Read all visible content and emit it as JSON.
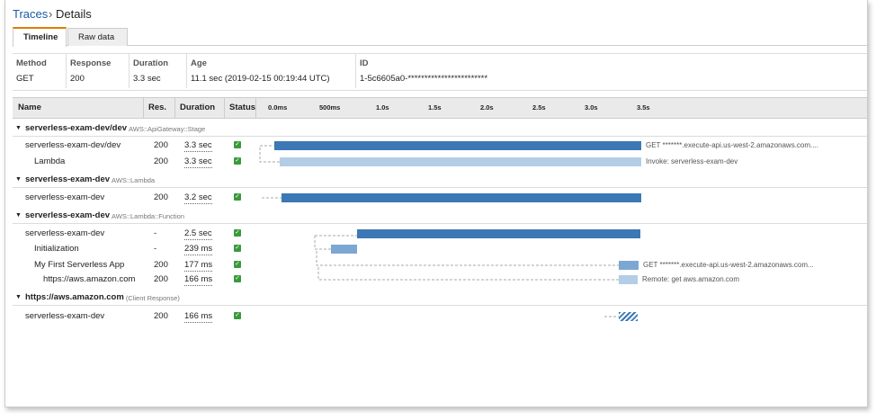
{
  "breadcrumb": {
    "link": "Traces",
    "separator": "›",
    "current": "Details"
  },
  "tabs": [
    "Timeline",
    "Raw data"
  ],
  "summary": {
    "headers": [
      "Method",
      "Response",
      "Duration",
      "Age",
      "ID"
    ],
    "values": [
      "GET",
      "200",
      "3.3 sec",
      "11.1 sec (2019-02-15 00:19:44 UTC)",
      "1-5c6605a0-************************"
    ]
  },
  "timeline": {
    "headers": [
      "Name",
      "Res.",
      "Duration",
      "Status"
    ],
    "axis": [
      "0.0ms",
      "500ms",
      "1.0s",
      "1.5s",
      "2.0s",
      "2.5s",
      "3.0s",
      "3.5s"
    ],
    "groups": [
      {
        "name": "serverless-exam-dev/dev",
        "type": "AWS::ApiGateway::Stage",
        "rows": [
          {
            "name": "serverless-exam-dev/dev",
            "res": "200",
            "duration": "3.3 sec",
            "note": "GET *******.execute-api.us-west-2.amazonaws.com...."
          },
          {
            "name": "Lambda",
            "res": "200",
            "duration": "3.3 sec",
            "note": "Invoke: serverless-exam-dev"
          }
        ]
      },
      {
        "name": "serverless-exam-dev",
        "type": "AWS::Lambda",
        "rows": [
          {
            "name": "serverless-exam-dev",
            "res": "200",
            "duration": "3.2 sec"
          }
        ]
      },
      {
        "name": "serverless-exam-dev",
        "type": "AWS::Lambda::Function",
        "rows": [
          {
            "name": "serverless-exam-dev",
            "res": "-",
            "duration": "2.5 sec"
          },
          {
            "name": "Initialization",
            "res": "-",
            "duration": "239 ms"
          },
          {
            "name": "My First Serverless App",
            "res": "200",
            "duration": "177 ms",
            "note": "GET *******.execute-api.us-west-2.amazonaws.com..."
          },
          {
            "name": "https://aws.amazon.com",
            "res": "200",
            "duration": "166 ms",
            "note": "Remote: get aws.amazon.com"
          }
        ]
      },
      {
        "name": "https://aws.amazon.com",
        "type": "(Client Response)",
        "rows": [
          {
            "name": "serverless-exam-dev",
            "res": "200",
            "duration": "166 ms"
          }
        ]
      }
    ]
  }
}
